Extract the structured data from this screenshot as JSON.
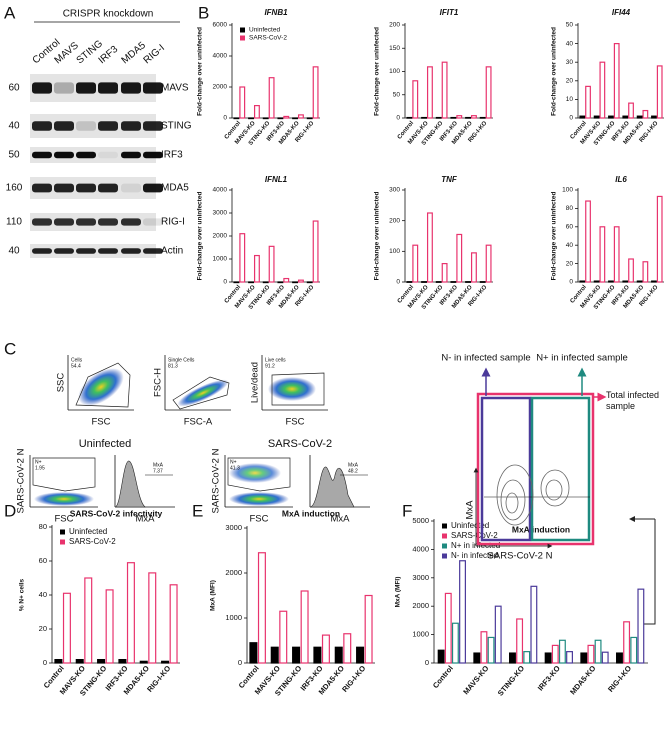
{
  "panel_labels": [
    "A",
    "B",
    "C",
    "D",
    "E",
    "F"
  ],
  "blot": {
    "header": "CRISPR knockdown",
    "lanes": [
      "Control",
      "MAVS",
      "STING",
      "IRF3",
      "MDA5",
      "RIG-I"
    ],
    "markers": [
      60,
      40,
      50,
      160,
      110,
      40
    ],
    "proteins": [
      "MAVS",
      "STING",
      "IRF3",
      "MDA5",
      "RIG-I",
      "Actin"
    ]
  },
  "chart_data": [
    {
      "type": "bar",
      "title": "IFNB1",
      "ylabel": "Fold-change over uninfected",
      "categories": [
        "Control",
        "MAVS-KO",
        "STING-KO",
        "IRF3-KO",
        "MDA5-KO",
        "RIG-I-KO"
      ],
      "series": [
        {
          "name": "Uninfected",
          "color": "#000000",
          "values": [
            1,
            1,
            1,
            1,
            1,
            1
          ]
        },
        {
          "name": "SARS-CoV-2",
          "color": "#e8336d",
          "values": [
            2000,
            800,
            2600,
            100,
            200,
            3300
          ]
        }
      ],
      "ylim": [
        0,
        6000
      ],
      "yticks": [
        0,
        2000,
        4000,
        6000
      ],
      "legend": "upper left"
    },
    {
      "type": "bar",
      "title": "IFIT1",
      "ylabel": "Fold-change over uninfected",
      "categories": [
        "Control",
        "MAVS-KO",
        "STING-KO",
        "IRF3-KO",
        "MDA5-KO",
        "RIG-I-KO"
      ],
      "series": [
        {
          "name": "Uninfected",
          "color": "#000000",
          "values": [
            1,
            1,
            1,
            1,
            1,
            1
          ]
        },
        {
          "name": "SARS-CoV-2",
          "color": "#e8336d",
          "values": [
            80,
            110,
            120,
            5,
            5,
            110
          ]
        }
      ],
      "ylim": [
        0,
        200
      ],
      "yticks": [
        0,
        50,
        100,
        150,
        200
      ]
    },
    {
      "type": "bar",
      "title": "IFI44",
      "ylabel": "Fold-change over uninfected",
      "categories": [
        "Control",
        "MAVS-KO",
        "STING-KO",
        "IRF3-KO",
        "MDA5-KO",
        "RIG-I-KO"
      ],
      "series": [
        {
          "name": "Uninfected",
          "color": "#000000",
          "values": [
            1,
            1,
            1,
            1,
            1,
            1
          ]
        },
        {
          "name": "SARS-CoV-2",
          "color": "#e8336d",
          "values": [
            17,
            30,
            40,
            8,
            4,
            28
          ]
        }
      ],
      "ylim": [
        0,
        50
      ],
      "yticks": [
        0,
        10,
        20,
        30,
        40,
        50
      ]
    },
    {
      "type": "bar",
      "title": "IFNL1",
      "ylabel": "Fold-change over uninfected",
      "categories": [
        "Control",
        "MAVS-KO",
        "STING-KO",
        "IRF3-KO",
        "MDA5-KO",
        "RIG-I-KO"
      ],
      "series": [
        {
          "name": "Uninfected",
          "color": "#000000",
          "values": [
            1,
            1,
            1,
            1,
            1,
            1
          ]
        },
        {
          "name": "SARS-CoV-2",
          "color": "#e8336d",
          "values": [
            2100,
            1150,
            1550,
            150,
            80,
            2650
          ]
        }
      ],
      "ylim": [
        0,
        4000
      ],
      "yticks": [
        0,
        1000,
        2000,
        3000,
        4000
      ]
    },
    {
      "type": "bar",
      "title": "TNF",
      "ylabel": "Fold-change over uninfected",
      "categories": [
        "Control",
        "MAVS-KO",
        "STING-KO",
        "IRF3-KO",
        "MDA5-KO",
        "RIG-I-KO"
      ],
      "series": [
        {
          "name": "Uninfected",
          "color": "#000000",
          "values": [
            1,
            1,
            1,
            1,
            1,
            1
          ]
        },
        {
          "name": "SARS-CoV-2",
          "color": "#e8336d",
          "values": [
            120,
            225,
            60,
            155,
            95,
            120
          ]
        }
      ],
      "ylim": [
        0,
        300
      ],
      "yticks": [
        0,
        100,
        200,
        300
      ]
    },
    {
      "type": "bar",
      "title": "IL6",
      "ylabel": "Fold-change over uninfected",
      "categories": [
        "Control",
        "MAVS-KO",
        "STING-KO",
        "IRF3-KO",
        "MDA5-KO",
        "RIG-I-KO"
      ],
      "series": [
        {
          "name": "Uninfected",
          "color": "#000000",
          "values": [
            1,
            1,
            1,
            1,
            1,
            1
          ]
        },
        {
          "name": "SARS-CoV-2",
          "color": "#e8336d",
          "values": [
            88,
            60,
            60,
            25,
            22,
            93
          ]
        }
      ],
      "ylim": [
        0,
        100
      ],
      "yticks": [
        0,
        20,
        40,
        60,
        80,
        100
      ]
    },
    {
      "type": "bar",
      "title": "SARS-CoV-2 infectivity",
      "ylabel": "% N+ cells",
      "categories": [
        "Control",
        "MAVS-KO",
        "STING-KO",
        "IRF3-KO",
        "MDA5-KO",
        "RIG-I-KO"
      ],
      "series": [
        {
          "name": "Uninfected",
          "color": "#000000",
          "values": [
            2,
            2,
            2,
            2,
            1,
            1
          ]
        },
        {
          "name": "SARS-CoV-2",
          "color": "#e8336d",
          "values": [
            41,
            50,
            43,
            59,
            53,
            46
          ]
        }
      ],
      "ylim": [
        0,
        80
      ],
      "yticks": [
        0,
        20,
        40,
        60,
        80
      ],
      "legend": "upper left"
    },
    {
      "type": "bar",
      "title": "MxA induction",
      "ylabel": "MxA (MFI)",
      "categories": [
        "Control",
        "MAVS-KO",
        "STING-KO",
        "IRF3-KO",
        "MDA5-KO",
        "RIG-I-KO"
      ],
      "series": [
        {
          "name": "Uninfected",
          "color": "#000000",
          "values": [
            450,
            350,
            350,
            350,
            350,
            350
          ]
        },
        {
          "name": "SARS-CoV-2",
          "color": "#e8336d",
          "values": [
            2450,
            1150,
            1600,
            620,
            650,
            1500
          ]
        }
      ],
      "ylim": [
        0,
        3000
      ],
      "yticks": [
        0,
        1000,
        2000,
        3000
      ]
    },
    {
      "type": "bar",
      "title": "MxA induction",
      "ylabel": "MxA (MFI)",
      "categories": [
        "Control",
        "MAVS-KO",
        "STING-KO",
        "IRF3-KO",
        "MDA5-KO",
        "RIG-I-KO"
      ],
      "series": [
        {
          "name": "Uninfected",
          "color": "#000000",
          "values": [
            450,
            350,
            350,
            350,
            350,
            350
          ]
        },
        {
          "name": "SARS-CoV-2",
          "color": "#e8336d",
          "values": [
            2450,
            1100,
            1550,
            620,
            620,
            1450
          ]
        },
        {
          "name": "N+ in infected",
          "color": "#1f8a80",
          "values": [
            1400,
            900,
            400,
            800,
            800,
            900
          ]
        },
        {
          "name": "N- in infected",
          "color": "#4b3a9a",
          "values": [
            3600,
            2000,
            2700,
            400,
            380,
            2600
          ]
        }
      ],
      "ylim": [
        0,
        5000
      ],
      "yticks": [
        0,
        1000,
        2000,
        3000,
        4000,
        5000
      ],
      "legend": "upper left"
    }
  ],
  "flow": {
    "gating": [
      {
        "gate": "Cells",
        "value": 54.4,
        "ylabel": "SSC",
        "xlabel": "FSC"
      },
      {
        "gate": "Single Cells",
        "value": 81.3,
        "ylabel": "FSC-H",
        "xlabel": "FSC-A"
      },
      {
        "gate": "Live cells",
        "value": 91.2,
        "ylabel": "Live/dead",
        "xlabel": "FSC"
      }
    ],
    "samples": [
      {
        "title": "Uninfected",
        "ylabel": "SARS-CoV-2 N",
        "scatter_x": "FSC",
        "hist_x": "MxA",
        "n_gate": "N+",
        "n_value": 1.95,
        "mxa_gate": "MxA",
        "mxa_value": 7.37
      },
      {
        "title": "SARS-CoV-2",
        "ylabel": "SARS-CoV-2 N",
        "scatter_x": "FSC",
        "hist_x": "MxA",
        "n_gate": "N+",
        "n_value": 41.3,
        "mxa_gate": "MxA",
        "mxa_value": 48.2
      }
    ],
    "diagram": {
      "left": "N- in infected sample",
      "right": "N+ in infected sample",
      "total": "Total infected sample",
      "ylabel": "MxA",
      "xlabel": "SARS-CoV-2 N"
    }
  }
}
